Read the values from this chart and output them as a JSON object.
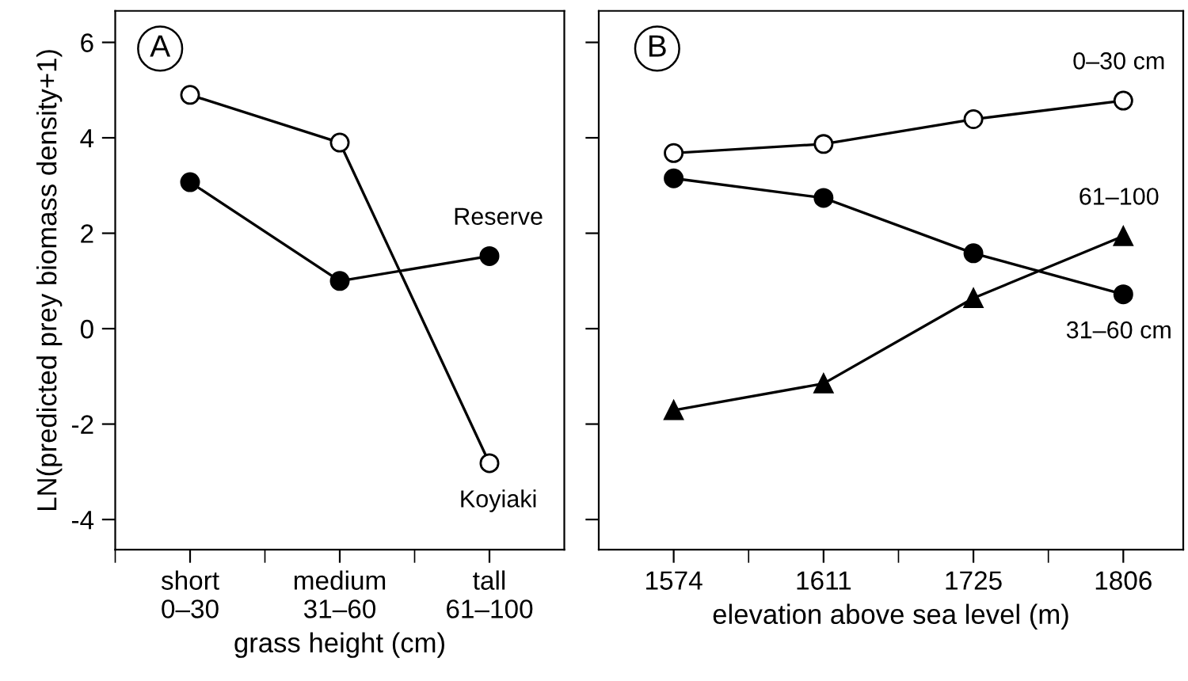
{
  "chart_data": [
    {
      "type": "line",
      "annotations": [
        "A"
      ],
      "xlabel": "grass height (cm)",
      "ylabel": "LN(predicted prey biomass density+1)",
      "categories": [
        "short\n0–30",
        "medium\n31–60",
        "tall\n61–100"
      ],
      "ylim": [
        -4.63,
        6.66
      ],
      "yticks": [
        -4,
        -2,
        0,
        2,
        4,
        6
      ],
      "grid": false,
      "line_style": "solid",
      "series": [
        {
          "name": "Koyiaki",
          "color": "#ffffff",
          "marker": "circle",
          "values": [
            4.9,
            3.9,
            -2.82
          ]
        },
        {
          "name": "Reserve",
          "color": "#000000",
          "marker": "circle",
          "values": [
            3.07,
            1.0,
            1.52
          ]
        }
      ]
    },
    {
      "type": "line",
      "annotations": [
        "B"
      ],
      "xlabel": "elevation above sea level (m)",
      "categories": [
        "1574",
        "1611",
        "1725",
        "1806"
      ],
      "ylim": [
        -4.63,
        6.66
      ],
      "yticks": [
        -4,
        -2,
        0,
        2,
        4,
        6
      ],
      "tick_labels": "x",
      "grid": false,
      "line_style": "solid",
      "series": [
        {
          "name": "0–30 cm",
          "color": "#ffffff",
          "marker": "circle",
          "values": [
            3.68,
            3.87,
            4.39,
            4.78
          ]
        },
        {
          "name": "31–60 cm",
          "color": "#000000",
          "marker": "circle",
          "values": [
            3.15,
            2.74,
            1.58,
            0.72
          ]
        },
        {
          "name": "61–100",
          "color": "#000000",
          "marker": "triangle",
          "values": [
            -1.71,
            -1.15,
            0.64,
            1.94
          ]
        }
      ]
    }
  ]
}
